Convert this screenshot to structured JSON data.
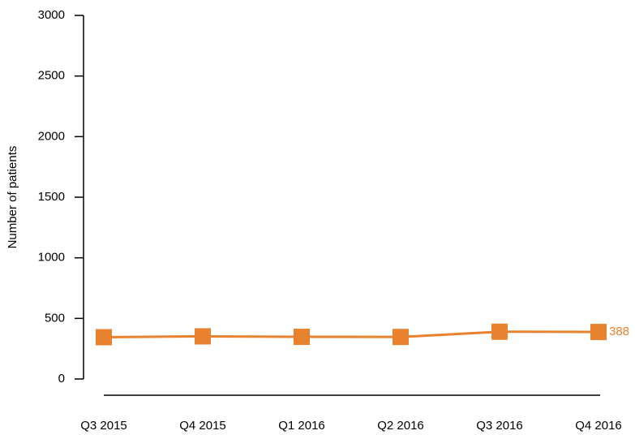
{
  "chart_data": {
    "type": "line",
    "y_label": "Number of patients",
    "categories": [
      "Q3 2015",
      "Q4 2015",
      "Q1 2016",
      "Q2 2016",
      "Q3 2016",
      "Q4 2016"
    ],
    "series": [
      {
        "name": "Patients",
        "color": "#e8822e",
        "values": [
          345,
          352,
          348,
          347,
          390,
          388
        ]
      }
    ],
    "ylim": [
      0,
      3000
    ],
    "yticks": [
      0,
      500,
      1000,
      1500,
      2000,
      2500,
      3000
    ],
    "grid": false
  }
}
